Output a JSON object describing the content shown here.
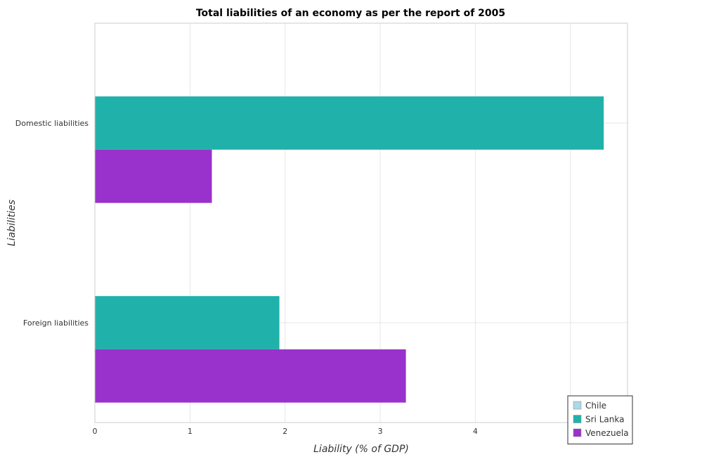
{
  "chart_data": {
    "type": "bar",
    "orientation": "horizontal",
    "title": "Total liabilities of an economy as per the report of 2005",
    "xlabel": "Liability (% of GDP)",
    "ylabel": "Liabilities",
    "categories": [
      "Domestic liabilities",
      "Foreign liabilities"
    ],
    "series": [
      {
        "name": "Chile",
        "color": "#add8e6",
        "values": [
          0,
          0
        ]
      },
      {
        "name": "Sri Lanka",
        "color": "#20b2aa",
        "values": [
          5.35,
          1.94
        ]
      },
      {
        "name": "Venezuela",
        "color": "#9932cc",
        "values": [
          1.23,
          3.27
        ]
      }
    ],
    "xlim": [
      0,
      5.6
    ],
    "xticks": [
      0,
      1,
      2,
      3,
      4,
      5
    ],
    "grid": true,
    "legend": "bottom-right"
  }
}
